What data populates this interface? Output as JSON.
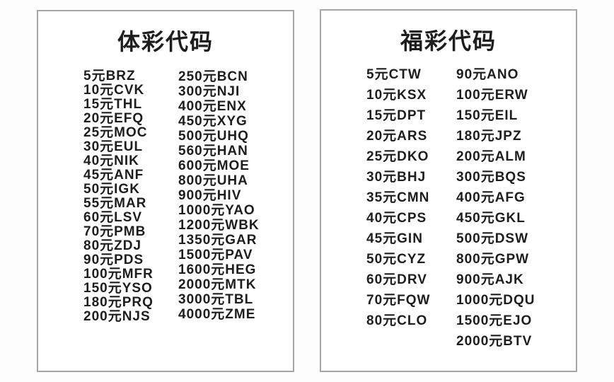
{
  "colors": {
    "page_background": "#fdfdfd",
    "card_background": "#ffffff",
    "card_border": "#a6a6a6",
    "text": "#1d1d1d"
  },
  "panels": [
    {
      "title": "体彩代码",
      "columns": [
        [
          "5元BRZ",
          "10元CVK",
          "15元THL",
          "20元EFQ",
          "25元MOC",
          "30元EUL",
          "40元NIK",
          "45元ANF",
          "50元IGK",
          "55元MAR",
          "60元LSV",
          "70元PMB",
          "80元ZDJ",
          "90元PDS",
          "100元MFR",
          "150元YSO",
          "180元PRQ",
          "200元NJS"
        ],
        [
          "250元BCN",
          "300元NJI",
          "400元ENX",
          "450元XYG",
          "500元UHQ",
          "560元HAN",
          "600元MOE",
          "800元UHA",
          "900元HIV",
          "1000元YAO",
          "1200元WBK",
          "1350元GAR",
          "1500元PAV",
          "1600元HEG",
          "2000元MTK",
          "3000元TBL",
          "4000元ZME"
        ]
      ]
    },
    {
      "title": "福彩代码",
      "columns": [
        [
          "5元CTW",
          "10元KSX",
          "15元DPT",
          "20元ARS",
          "25元DKO",
          "30元BHJ",
          "35元CMN",
          "40元CPS",
          "45元GIN",
          "50元CYZ",
          "60元DRV",
          "70元FQW",
          "80元CLO"
        ],
        [
          "90元ANO",
          "100元ERW",
          "150元EIL",
          "180元JPZ",
          "200元ALM",
          "300元BQS",
          "400元AFG",
          "450元GKL",
          "500元DSW",
          "800元GPW",
          "900元AJK",
          "1000元DQU",
          "1500元EJO",
          "2000元BTV"
        ]
      ]
    }
  ]
}
